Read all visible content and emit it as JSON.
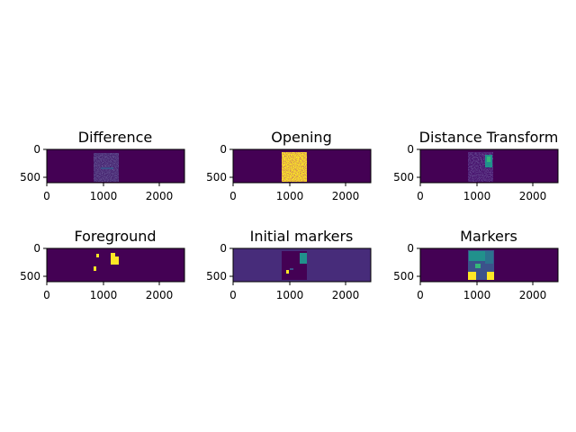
{
  "colors": {
    "dark_purple": "#440154",
    "background_purple": "#472c7a",
    "teal": "#21918c",
    "green": "#35b779",
    "yellow": "#fde725",
    "blue": "#3b528b"
  },
  "chart_data": [
    {
      "type": "heatmap",
      "title": "Difference",
      "x_ticks": [
        "0",
        "1000",
        "2000"
      ],
      "y_ticks": [
        "0",
        "500"
      ],
      "xlim": [
        0,
        2450
      ],
      "ylim": [
        600,
        0
      ],
      "colormap": "viridis",
      "description_values": "sparse low-intensity speckle in central region"
    },
    {
      "type": "heatmap",
      "title": "Opening",
      "x_ticks": [
        "0",
        "1000",
        "2000"
      ],
      "y_ticks": [
        "0",
        "500"
      ],
      "xlim": [
        0,
        2450
      ],
      "ylim": [
        600,
        0
      ],
      "colormap": "viridis",
      "description_values": "bright yellow block in central region"
    },
    {
      "type": "heatmap",
      "title": "Distance Transform",
      "x_ticks": [
        "0",
        "1000",
        "2000"
      ],
      "y_ticks": [
        "0",
        "500"
      ],
      "xlim": [
        0,
        2450
      ],
      "ylim": [
        600,
        0
      ],
      "colormap": "viridis",
      "description_values": "low values with teal/green highlights at right edge of central block"
    },
    {
      "type": "heatmap",
      "title": "Foreground",
      "x_ticks": [
        "0",
        "1000",
        "2000"
      ],
      "y_ticks": [
        "0",
        "500"
      ],
      "xlim": [
        0,
        2450
      ],
      "ylim": [
        600,
        0
      ],
      "colormap": "viridis",
      "description_values": "few small yellow blobs"
    },
    {
      "type": "heatmap",
      "title": "Initial markers",
      "x_ticks": [
        "0",
        "1000",
        "2000"
      ],
      "y_ticks": [
        "0",
        "500"
      ],
      "xlim": [
        0,
        2450
      ],
      "ylim": [
        600,
        0
      ],
      "colormap": "viridis",
      "description_values": "purple background with dark central block and teal region"
    },
    {
      "type": "heatmap",
      "title": "Markers",
      "x_ticks": [
        "0",
        "1000",
        "2000"
      ],
      "y_ticks": [
        "0",
        "500"
      ],
      "xlim": [
        0,
        2450
      ],
      "ylim": [
        600,
        0
      ],
      "colormap": "viridis",
      "description_values": "segmented central block with teal, blue, green and yellow regions"
    }
  ]
}
